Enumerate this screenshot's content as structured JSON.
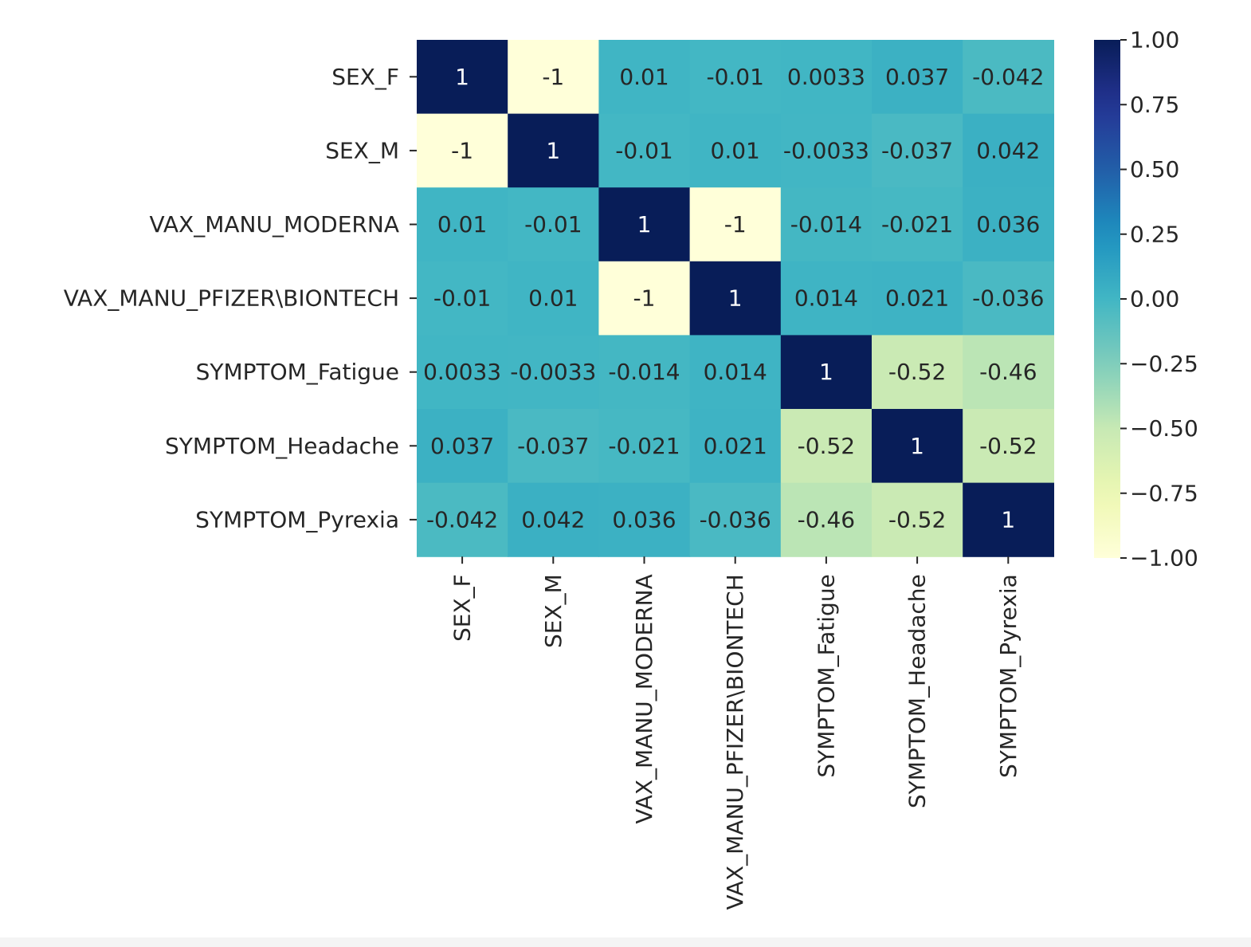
{
  "chart_data": {
    "type": "heatmap",
    "title": "",
    "xlabel": "",
    "ylabel": "",
    "row_labels": [
      "SEX_F",
      "SEX_M",
      "VAX_MANU_MODERNA",
      "VAX_MANU_PFIZER\\BIONTECH",
      "SYMPTOM_Fatigue",
      "SYMPTOM_Headache",
      "SYMPTOM_Pyrexia"
    ],
    "col_labels": [
      "SEX_F",
      "SEX_M",
      "VAX_MANU_MODERNA",
      "VAX_MANU_PFIZER\\BIONTECH",
      "SYMPTOM_Fatigue",
      "SYMPTOM_Headache",
      "SYMPTOM_Pyrexia"
    ],
    "values": [
      [
        1,
        -1,
        0.01,
        -0.01,
        0.0033,
        0.037,
        -0.042
      ],
      [
        -1,
        1,
        -0.01,
        0.01,
        -0.0033,
        -0.037,
        0.042
      ],
      [
        0.01,
        -0.01,
        1,
        -1,
        -0.014,
        -0.021,
        0.036
      ],
      [
        -0.01,
        0.01,
        -1,
        1,
        0.014,
        0.021,
        -0.036
      ],
      [
        0.0033,
        -0.0033,
        -0.014,
        0.014,
        1,
        -0.52,
        -0.46
      ],
      [
        0.037,
        -0.037,
        -0.021,
        0.021,
        -0.52,
        1,
        -0.52
      ],
      [
        -0.042,
        0.042,
        0.036,
        -0.036,
        -0.46,
        -0.52,
        1
      ]
    ],
    "annotations": [
      [
        "1",
        "-1",
        "0.01",
        "-0.01",
        "0.0033",
        "0.037",
        "-0.042"
      ],
      [
        "-1",
        "1",
        "-0.01",
        "0.01",
        "-0.0033",
        "-0.037",
        "0.042"
      ],
      [
        "0.01",
        "-0.01",
        "1",
        "-1",
        "-0.014",
        "-0.021",
        "0.036"
      ],
      [
        "-0.01",
        "0.01",
        "-1",
        "1",
        "0.014",
        "0.021",
        "-0.036"
      ],
      [
        "0.0033",
        "-0.0033",
        "-0.014",
        "0.014",
        "1",
        "-0.52",
        "-0.46"
      ],
      [
        "0.037",
        "-0.037",
        "-0.021",
        "0.021",
        "-0.52",
        "1",
        "-0.52"
      ],
      [
        "-0.042",
        "0.042",
        "0.036",
        "-0.036",
        "-0.46",
        "-0.52",
        "1"
      ]
    ],
    "vmin": -1,
    "vmax": 1,
    "colormap": "YlGnBu",
    "colorbar": {
      "ticks": [
        1.0,
        0.75,
        0.5,
        0.25,
        0.0,
        -0.25,
        -0.5,
        -0.75,
        -1.0
      ],
      "tick_labels": [
        "1.00",
        "0.75",
        "0.50",
        "0.25",
        "0.00",
        "−0.25",
        "−0.50",
        "−0.75",
        "−1.00"
      ]
    },
    "grid": false,
    "legend": "colorbar-right"
  }
}
